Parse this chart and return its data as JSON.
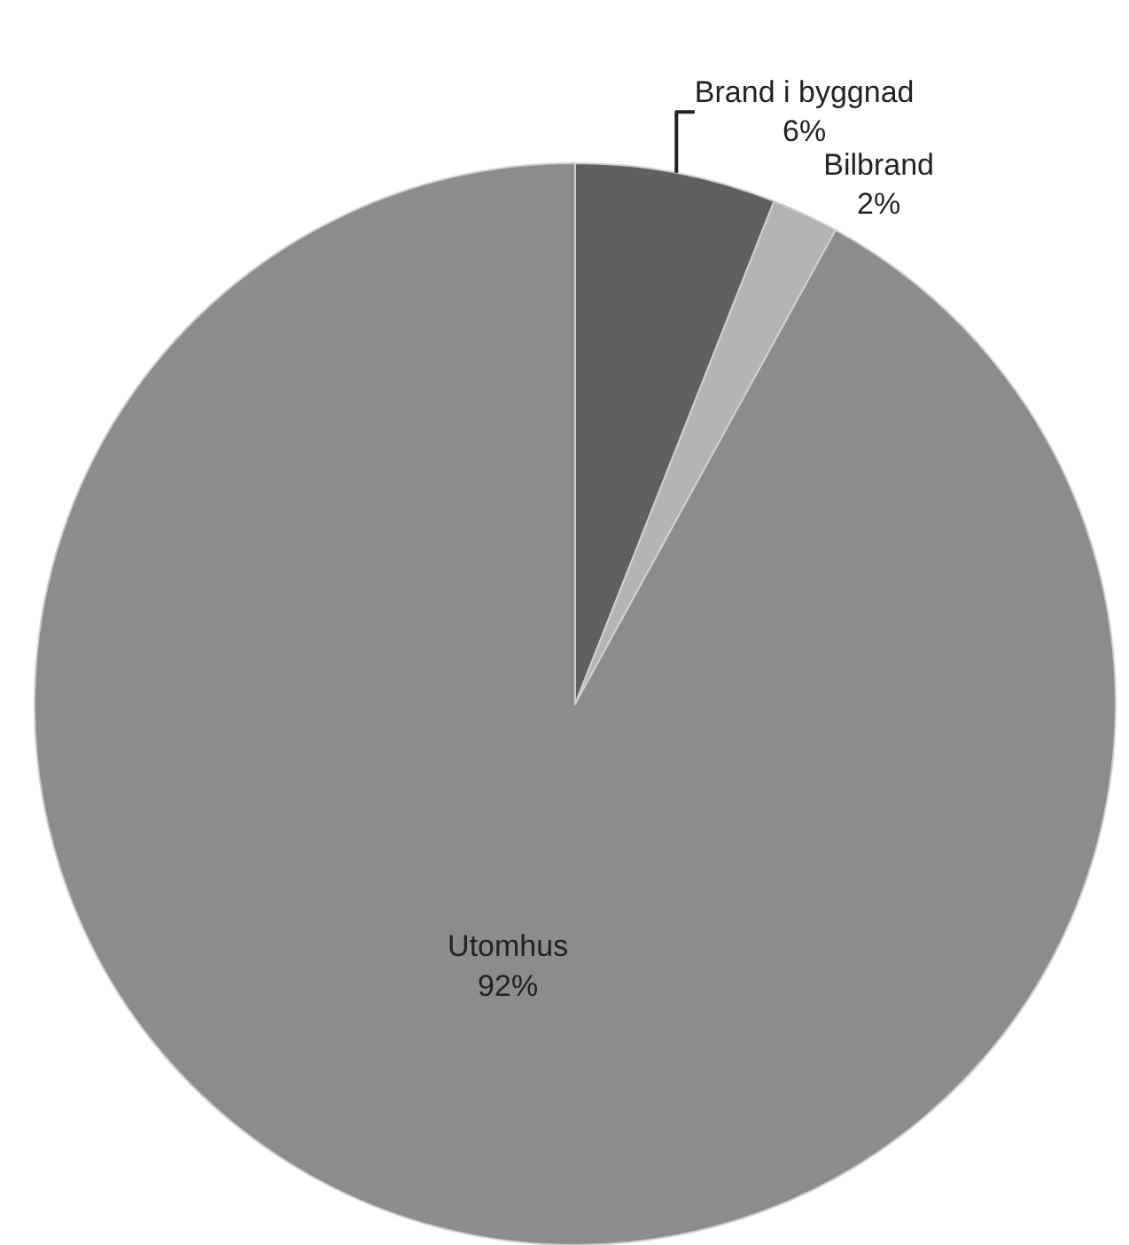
{
  "chart_data": {
    "type": "pie",
    "categories": [
      "Brand i byggnad",
      "Bilbrand",
      "Utomhus"
    ],
    "values": [
      6,
      2,
      92
    ],
    "value_labels": [
      "6%",
      "2%",
      "92%"
    ],
    "colors": [
      "#606060",
      "#b4b4b4",
      "#8c8c8c"
    ]
  }
}
